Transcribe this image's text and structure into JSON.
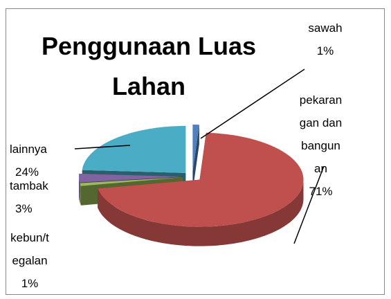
{
  "chart_data": {
    "type": "pie",
    "title": "Penggunaan Luas Lahan",
    "categories": [
      "sawah",
      "pekarangan dan bangunan",
      "kebun/tegalan",
      "tambak",
      "lainnya"
    ],
    "values": [
      1,
      71,
      1,
      3,
      24
    ],
    "value_labels": [
      "1%",
      "71%",
      "1%",
      "3%",
      "24%"
    ],
    "colors": [
      "#4f81bd",
      "#c0504d",
      "#9bbb59",
      "#8064a2",
      "#4bacc6"
    ]
  }
}
